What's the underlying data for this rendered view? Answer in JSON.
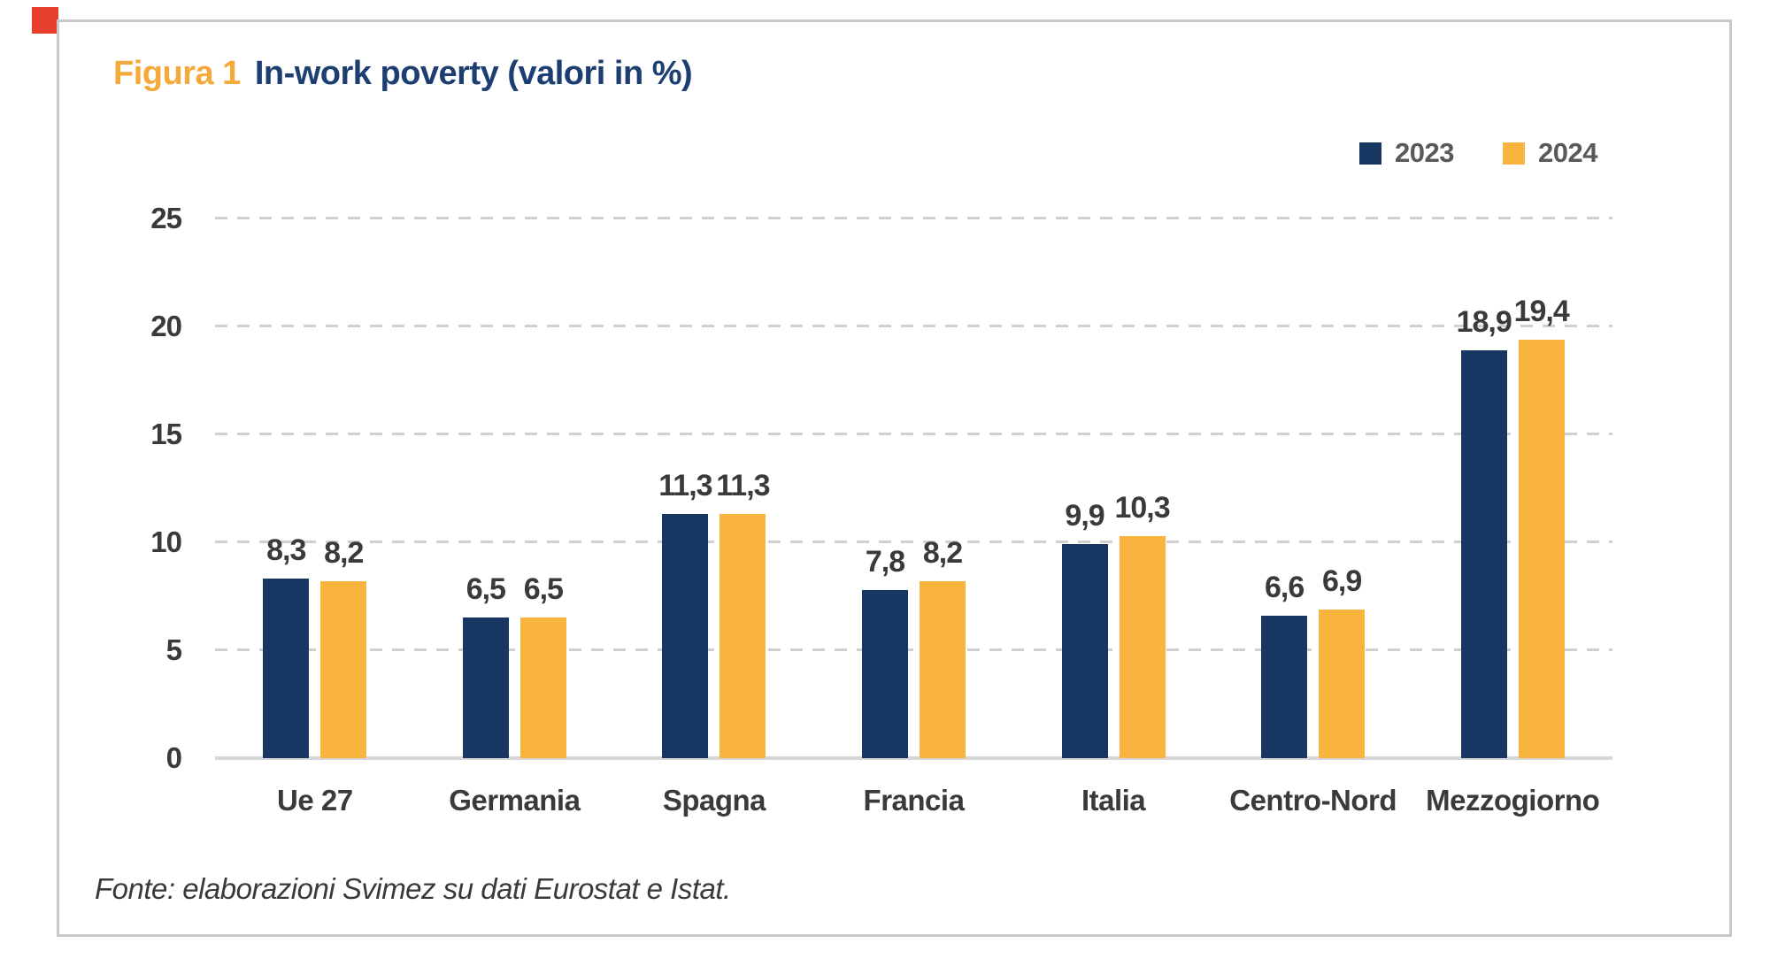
{
  "figure": {
    "label": "Figura 1",
    "title": "In-work poverty (valori in %)",
    "source_note": "Fonte: elaborazioni Svimez su dati Eurostat e Istat."
  },
  "legend": {
    "items": [
      {
        "label": "2023",
        "color": "#173762"
      },
      {
        "label": "2024",
        "color": "#f9b440"
      }
    ]
  },
  "chart_data": {
    "type": "bar",
    "title": "In-work poverty (valori in %)",
    "categories": [
      "Ue 27",
      "Germania",
      "Spagna",
      "Francia",
      "Italia",
      "Centro-Nord",
      "Mezzogiorno"
    ],
    "series": [
      {
        "name": "2023",
        "color": "#173762",
        "values": [
          8.3,
          6.5,
          11.3,
          7.8,
          9.9,
          6.6,
          18.9
        ],
        "value_labels": [
          "8,3",
          "6,5",
          "11,3",
          "7,8",
          "9,9",
          "6,6",
          "18,9"
        ]
      },
      {
        "name": "2024",
        "color": "#f9b440",
        "values": [
          8.2,
          6.5,
          11.3,
          8.2,
          10.3,
          6.9,
          19.4
        ],
        "value_labels": [
          "8,2",
          "6,5",
          "11,3",
          "8,2",
          "10,3",
          "6,9",
          "19,4"
        ]
      }
    ],
    "y_ticks": [
      0,
      5,
      10,
      15,
      20,
      25
    ],
    "ylim": [
      0,
      25
    ],
    "grid": "horizontal-dashed",
    "legend_position": "top-right",
    "value_label_decimal": "comma"
  },
  "colors": {
    "title_accent": "#f5a93b",
    "title_main": "#1c3e70",
    "axis_text": "#3a3a3a",
    "legend_text": "#58595b",
    "gridline": "#d0d0d0",
    "axis_line": "#d6d6d6",
    "frame_border": "#c8c8c8",
    "red_marker": "#e6402c",
    "background": "#ffffff"
  }
}
